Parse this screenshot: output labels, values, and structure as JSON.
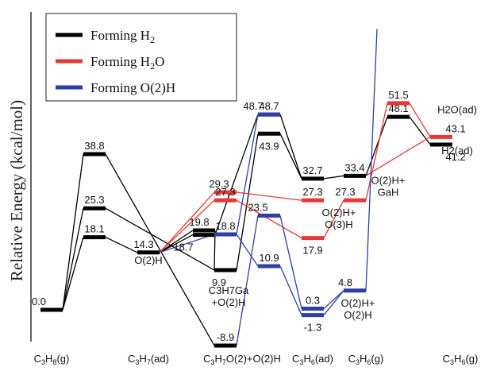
{
  "chart_data": {
    "type": "energy-profile",
    "title": "",
    "ylabel": "Relative Energy  (kcal/mol)",
    "ylim": [
      -15,
      70
    ],
    "colors": {
      "H2": "#000000",
      "H2O": "#e53935",
      "O2H": "#2f3fa8"
    },
    "legend": [
      {
        "key": "H2",
        "prefix": "Forming H",
        "sub": "2",
        "suffix": ""
      },
      {
        "key": "H2O",
        "prefix": "Forming H",
        "sub": "2",
        "suffix": "O"
      },
      {
        "key": "O2H",
        "prefix": "Forming O(2)H",
        "sub": "",
        "suffix": ""
      }
    ],
    "x_labels": [
      {
        "pos": 0,
        "parts": [
          [
            "C",
            0
          ],
          [
            "3",
            1
          ],
          [
            "H",
            0
          ],
          [
            "8",
            1
          ],
          [
            "(g)",
            0
          ]
        ]
      },
      {
        "pos": 2,
        "parts": [
          [
            "C",
            0
          ],
          [
            "3",
            1
          ],
          [
            "H",
            0
          ],
          [
            "7",
            1
          ],
          [
            "(ad)",
            0
          ]
        ]
      },
      {
        "pos": 4,
        "parts": [
          [
            "C",
            0
          ],
          [
            "3",
            1
          ],
          [
            "H",
            0
          ],
          [
            "7",
            1
          ],
          [
            "O(2)+O(2)H",
            0
          ]
        ]
      },
      {
        "pos": 5,
        "parts": [
          [
            "C",
            0
          ],
          [
            "3",
            1
          ],
          [
            "H",
            0
          ],
          [
            "6",
            1
          ],
          [
            "(ad)",
            0
          ]
        ]
      },
      {
        "pos": 6,
        "parts": [
          [
            "C",
            0
          ],
          [
            "3",
            1
          ],
          [
            "H",
            0
          ],
          [
            "6",
            1
          ],
          [
            "(g)",
            0
          ]
        ]
      },
      {
        "pos": 8,
        "parts": [
          [
            "C",
            0
          ],
          [
            "3",
            1
          ],
          [
            "H",
            0
          ],
          [
            "6",
            1
          ],
          [
            "(g)",
            0
          ]
        ]
      }
    ],
    "levels": [
      {
        "id": "a",
        "series": "H2",
        "pos": 0,
        "y": 0.0,
        "label": "0.0"
      },
      {
        "id": "b",
        "series": "H2",
        "pos": 1,
        "y": 38.8,
        "label": "38.8"
      },
      {
        "id": "c",
        "series": "H2",
        "pos": 1,
        "y": 25.3,
        "label": "25.3"
      },
      {
        "id": "d",
        "series": "H2",
        "pos": 1,
        "y": 18.1,
        "label": "18.1"
      },
      {
        "id": "e",
        "series": "H2",
        "pos": 2,
        "y": 14.3,
        "label": "14.3"
      },
      {
        "id": "f",
        "series": "H2",
        "pos": 3,
        "y": 19.8,
        "label": "19.8"
      },
      {
        "id": "g",
        "series": "H2",
        "pos": 3,
        "y": 18.7,
        "label": "18.7"
      },
      {
        "id": "h",
        "series": "H2",
        "pos": 4,
        "y": 9.9,
        "label": "9.9"
      },
      {
        "id": "i",
        "series": "H2",
        "pos": 4,
        "y": -8.9,
        "label": "-8.9"
      },
      {
        "id": "j",
        "series": "H2",
        "pos": 4.6,
        "y": 48.7,
        "label": "48.7"
      },
      {
        "id": "k",
        "series": "H2",
        "pos": 4.6,
        "y": 43.9,
        "label": "43.9"
      },
      {
        "id": "l",
        "series": "H2",
        "pos": 5,
        "y": 32.7,
        "label": "32.7"
      },
      {
        "id": "m",
        "series": "H2",
        "pos": 6,
        "y": 33.4,
        "label": "33.4"
      },
      {
        "id": "n",
        "series": "H2",
        "pos": 7,
        "y": 48.1,
        "label": "48.1"
      },
      {
        "id": "o",
        "series": "H2",
        "pos": 8,
        "y": 41.2,
        "label": "41.2"
      },
      {
        "id": "p",
        "series": "H2O",
        "pos": 4,
        "y": 29.3,
        "label": "29.3"
      },
      {
        "id": "q",
        "series": "H2O",
        "pos": 4,
        "y": 27.3,
        "label": "27.3"
      },
      {
        "id": "r",
        "series": "H2O",
        "pos": 5,
        "y": 27.3,
        "label": "27.3"
      },
      {
        "id": "s",
        "series": "H2O",
        "pos": 5,
        "y": 17.9,
        "label": "17.9"
      },
      {
        "id": "t",
        "series": "H2O",
        "pos": 6,
        "y": 27.3,
        "label": "27.3"
      },
      {
        "id": "u",
        "series": "H2O",
        "pos": 7,
        "y": 51.5,
        "label": "51.5"
      },
      {
        "id": "v",
        "series": "H2O",
        "pos": 8,
        "y": 43.1,
        "label": "43.1"
      },
      {
        "id": "w",
        "series": "O2H",
        "pos": 4,
        "y": 18.8,
        "label": "18.8"
      },
      {
        "id": "x",
        "series": "O2H",
        "pos": 4.6,
        "y": 48.7,
        "label": "48.7"
      },
      {
        "id": "y",
        "series": "O2H",
        "pos": 4.6,
        "y": 23.5,
        "label": "23.5"
      },
      {
        "id": "z",
        "series": "O2H",
        "pos": 4.6,
        "y": 10.9,
        "label": "10.9"
      },
      {
        "id": "aa",
        "series": "O2H",
        "pos": 5,
        "y": 0.3,
        "label": "0.3"
      },
      {
        "id": "ab",
        "series": "O2H",
        "pos": 5,
        "y": -1.3,
        "label": "-1.3"
      },
      {
        "id": "ac",
        "series": "O2H",
        "pos": 6,
        "y": 4.8,
        "label": "4.8"
      }
    ],
    "connections": [
      [
        "a",
        "b",
        "H2"
      ],
      [
        "a",
        "c",
        "H2"
      ],
      [
        "a",
        "d",
        "H2"
      ],
      [
        "b",
        "i",
        "H2"
      ],
      [
        "c",
        "h",
        "H2"
      ],
      [
        "d",
        "e",
        "H2"
      ],
      [
        "e",
        "f",
        "H2"
      ],
      [
        "e",
        "g",
        "H2"
      ],
      [
        "f",
        "h",
        "H2"
      ],
      [
        "g",
        "j",
        "H2"
      ],
      [
        "h",
        "k",
        "H2"
      ],
      [
        "j",
        "l",
        "H2"
      ],
      [
        "k",
        "l",
        "H2"
      ],
      [
        "l",
        "m",
        "H2"
      ],
      [
        "m",
        "n",
        "H2"
      ],
      [
        "n",
        "o",
        "H2"
      ],
      [
        "e",
        "p",
        "H2O"
      ],
      [
        "e",
        "q",
        "H2O"
      ],
      [
        "p",
        "r",
        "H2O"
      ],
      [
        "q",
        "s",
        "H2O"
      ],
      [
        "s",
        "t",
        "H2O"
      ],
      [
        "t",
        "u",
        "H2O"
      ],
      [
        "u",
        "v",
        "H2O"
      ],
      [
        "m",
        "v",
        "H2O"
      ],
      [
        "e",
        "w",
        "O2H"
      ],
      [
        "w",
        "x",
        "O2H"
      ],
      [
        "w",
        "z",
        "O2H"
      ],
      [
        "i",
        "y",
        "O2H"
      ],
      [
        "y",
        "aa",
        "O2H"
      ],
      [
        "z",
        "ab",
        "O2H"
      ],
      [
        "aa",
        "ac",
        "O2H"
      ],
      [
        "ab",
        "ac",
        "O2H"
      ]
    ],
    "offscale_line": {
      "series": "O2H",
      "from": "ac",
      "to_y": 70
    },
    "annotations": [
      {
        "text": "O(2)H",
        "anchor": "e",
        "series": "H2"
      },
      {
        "text": "C3H7Ga",
        "anchor": "h",
        "series": "H2",
        "line": 1
      },
      {
        "text": "+O(2)H",
        "anchor": "h",
        "series": "H2",
        "line": 2
      },
      {
        "text": "O(2)H+",
        "anchor": "m",
        "series": "H2",
        "line": 1
      },
      {
        "text": "GaH",
        "anchor": "m",
        "series": "H2",
        "line": 2
      },
      {
        "text": "O(2)H+",
        "anchor": "t",
        "series": "H2",
        "line": 1
      },
      {
        "text": "O(3)H",
        "anchor": "t",
        "series": "H2",
        "line": 2
      },
      {
        "text": "O(2)H+",
        "anchor": "ac",
        "series": "H2",
        "line": 1
      },
      {
        "text": "O(2)H",
        "anchor": "ac",
        "series": "H2",
        "line": 2
      },
      {
        "text": "H2O(ad)",
        "anchor": "v",
        "series": "H2O"
      },
      {
        "text": "H2(ad)",
        "anchor": "o",
        "series": "H2"
      }
    ]
  }
}
